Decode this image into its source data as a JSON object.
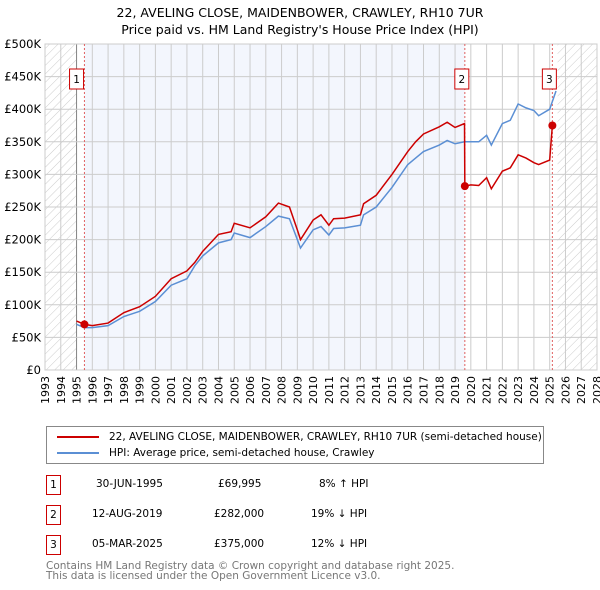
{
  "chart_data": {
    "type": "line",
    "title": "22, AVELING CLOSE, MAIDENBOWER, CRAWLEY, RH10 7UR",
    "subtitle": "Price paid vs. HM Land Registry's House Price Index (HPI)",
    "xlim": [
      1993,
      2028
    ],
    "ylim": [
      0,
      500000
    ],
    "x_ticks": [
      "1993",
      "1994",
      "1995",
      "1996",
      "1997",
      "1998",
      "1999",
      "2000",
      "2001",
      "2002",
      "2003",
      "2004",
      "2005",
      "2006",
      "2007",
      "2008",
      "2009",
      "2010",
      "2011",
      "2012",
      "2013",
      "2014",
      "2015",
      "2016",
      "2017",
      "2018",
      "2019",
      "2020",
      "2021",
      "2022",
      "2023",
      "2024",
      "2025",
      "2026",
      "2027",
      "2028"
    ],
    "y_ticks": [
      {
        "v": 0,
        "label": "£0"
      },
      {
        "v": 50000,
        "label": "£50K"
      },
      {
        "v": 100000,
        "label": "£100K"
      },
      {
        "v": 150000,
        "label": "£150K"
      },
      {
        "v": 200000,
        "label": "£200K"
      },
      {
        "v": 250000,
        "label": "£250K"
      },
      {
        "v": 300000,
        "label": "£300K"
      },
      {
        "v": 350000,
        "label": "£350K"
      },
      {
        "v": 400000,
        "label": "£400K"
      },
      {
        "v": 450000,
        "label": "£450K"
      },
      {
        "v": 500000,
        "label": "£500K"
      }
    ],
    "grid": true,
    "series": [
      {
        "name": "22, AVELING CLOSE, MAIDENBOWER, CRAWLEY, RH10 7UR (semi-detached house)",
        "color": "#cc0000",
        "x": [
          1995.0,
          1995.5,
          1996,
          1997,
          1998,
          1999,
          2000,
          2001,
          2002,
          2002.5,
          2003,
          2004,
          2004.8,
          2005,
          2006,
          2007,
          2007.8,
          2008.5,
          2009,
          2009.2,
          2010,
          2010.5,
          2011,
          2011.3,
          2012,
          2013,
          2013.2,
          2014,
          2015,
          2016,
          2016.5,
          2017,
          2018,
          2018.5,
          2019,
          2019.6,
          2019.62,
          2020,
          2020.5,
          2021,
          2021.3,
          2022,
          2022.5,
          2023,
          2023.5,
          2024,
          2024.3,
          2025,
          2025.17
        ],
        "y": [
          75000,
          70000,
          68000,
          72000,
          88000,
          97000,
          113000,
          140000,
          152000,
          165000,
          182000,
          208000,
          212000,
          225000,
          218000,
          235000,
          256000,
          250000,
          215000,
          200000,
          230000,
          238000,
          222000,
          232000,
          233000,
          238000,
          255000,
          268000,
          300000,
          335000,
          350000,
          362000,
          373000,
          380000,
          372000,
          378000,
          282000,
          284000,
          283000,
          295000,
          278000,
          305000,
          310000,
          330000,
          325000,
          318000,
          315000,
          322000,
          375000
        ]
      },
      {
        "name": "HPI: Average price, semi-detached house, Crawley",
        "color": "#5b8fd4",
        "x": [
          1995.0,
          1995.5,
          1996,
          1997,
          1998,
          1999,
          2000,
          2001,
          2002,
          2002.5,
          2003,
          2004,
          2004.8,
          2005,
          2006,
          2007,
          2007.8,
          2008.5,
          2009,
          2009.2,
          2010,
          2010.5,
          2011,
          2011.3,
          2012,
          2013,
          2013.2,
          2014,
          2015,
          2016,
          2016.5,
          2017,
          2018,
          2018.5,
          2019,
          2019.6,
          2020,
          2020.5,
          2021,
          2021.3,
          2022,
          2022.5,
          2023,
          2023.5,
          2024,
          2024.3,
          2025,
          2025.4
        ],
        "y": [
          70000,
          65000,
          65000,
          68000,
          82000,
          90000,
          105000,
          130000,
          140000,
          160000,
          175000,
          195000,
          200000,
          210000,
          203000,
          220000,
          236000,
          232000,
          200000,
          187000,
          215000,
          220000,
          207000,
          217000,
          218000,
          222000,
          238000,
          250000,
          280000,
          315000,
          325000,
          335000,
          345000,
          352000,
          347000,
          350000,
          350000,
          350000,
          360000,
          345000,
          378000,
          383000,
          408000,
          402000,
          398000,
          390000,
          400000,
          428000
        ]
      }
    ],
    "sales": [
      {
        "n": "1",
        "x": 1995.5,
        "price": 69995,
        "date": "30-JUN-1995",
        "price_label": "£69,995",
        "hpi": "8% ↑ HPI"
      },
      {
        "n": "2",
        "x": 2019.62,
        "price": 282000,
        "date": "12-AUG-2019",
        "price_label": "£282,000",
        "hpi": "19% ↓ HPI"
      },
      {
        "n": "3",
        "x": 2025.17,
        "price": 375000,
        "date": "05-MAR-2025",
        "price_label": "£375,000",
        "hpi": "12% ↓ HPI"
      }
    ]
  },
  "footer": {
    "line1": "Contains HM Land Registry data © Crown copyright and database right 2025.",
    "line2": "This data is licensed under the Open Government Licence v3.0."
  }
}
